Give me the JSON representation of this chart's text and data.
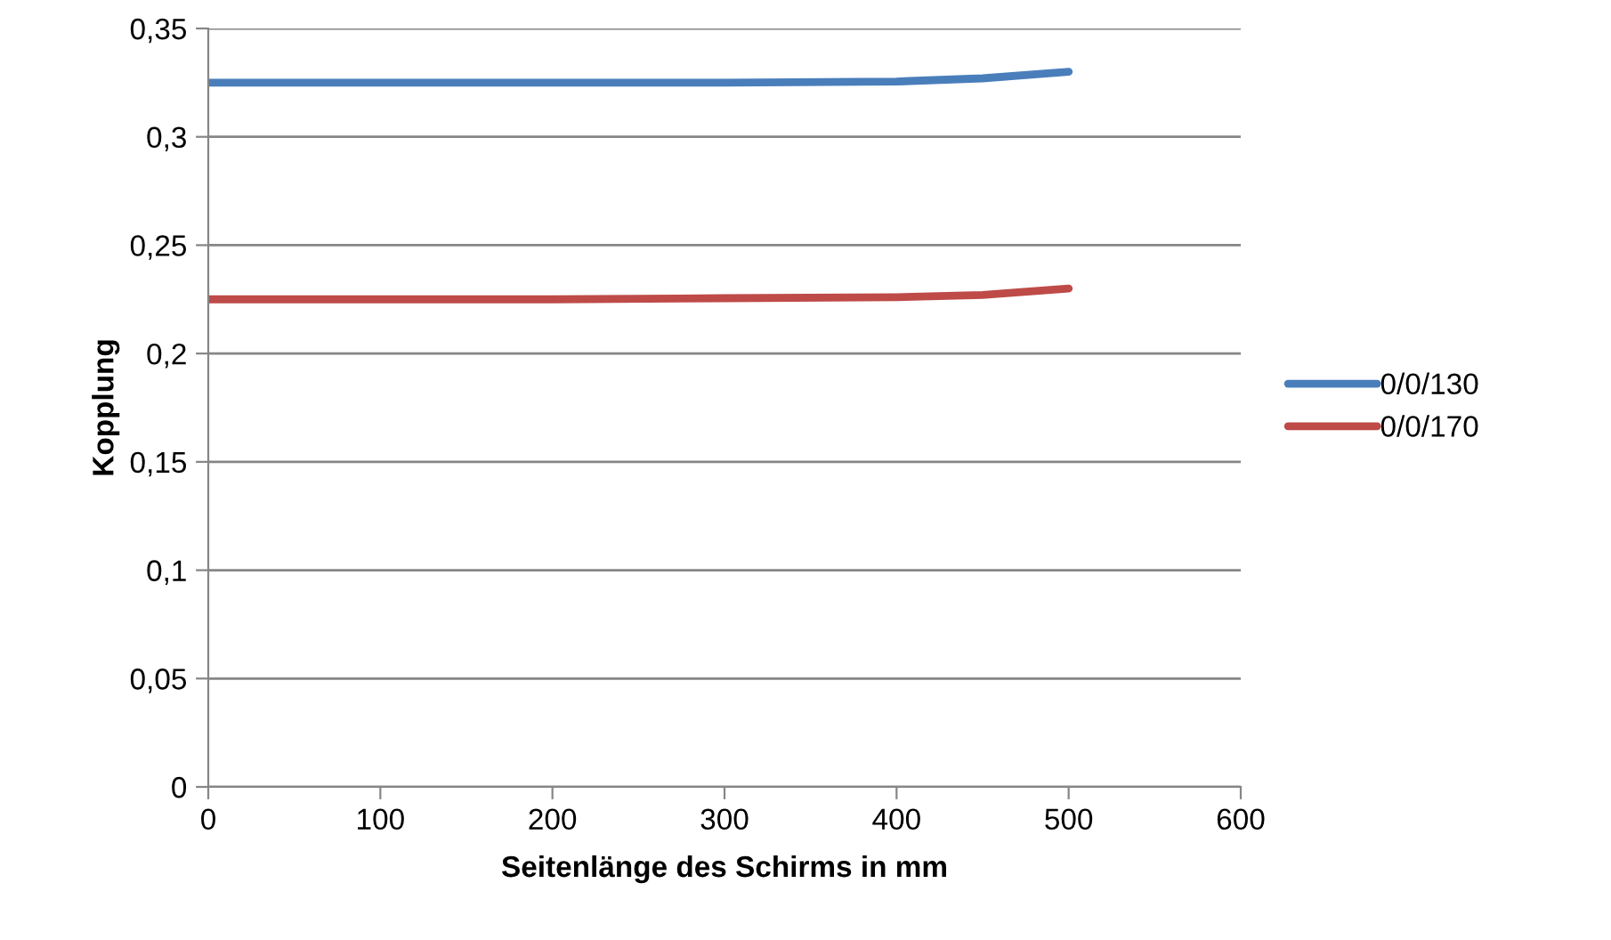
{
  "chart_data": {
    "type": "line",
    "xlabel": "Seitenlänge des Schirms in mm",
    "ylabel": "Kopplung",
    "x": [
      0,
      100,
      200,
      300,
      400,
      450,
      500
    ],
    "series": [
      {
        "name": "0/0/130",
        "color": "#4a7ebb",
        "values": [
          0.325,
          0.325,
          0.325,
          0.325,
          0.3255,
          0.327,
          0.33
        ]
      },
      {
        "name": "0/0/170",
        "color": "#be4b48",
        "values": [
          0.225,
          0.225,
          0.225,
          0.2255,
          0.226,
          0.227,
          0.23
        ]
      }
    ],
    "xlim": [
      0,
      600
    ],
    "xticks": [
      0,
      100,
      200,
      300,
      400,
      500,
      600
    ],
    "ylim": [
      0,
      0.35
    ],
    "yticks": [
      {
        "value": 0,
        "label": "0"
      },
      {
        "value": 0.05,
        "label": "0,05"
      },
      {
        "value": 0.1,
        "label": "0,1"
      },
      {
        "value": 0.15,
        "label": "0,15"
      },
      {
        "value": 0.2,
        "label": "0,2"
      },
      {
        "value": 0.25,
        "label": "0,25"
      },
      {
        "value": 0.3,
        "label": "0,3"
      },
      {
        "value": 0.35,
        "label": "0,35"
      }
    ],
    "grid": "y",
    "legend": "right",
    "marker": "none",
    "line_style": "solid"
  }
}
